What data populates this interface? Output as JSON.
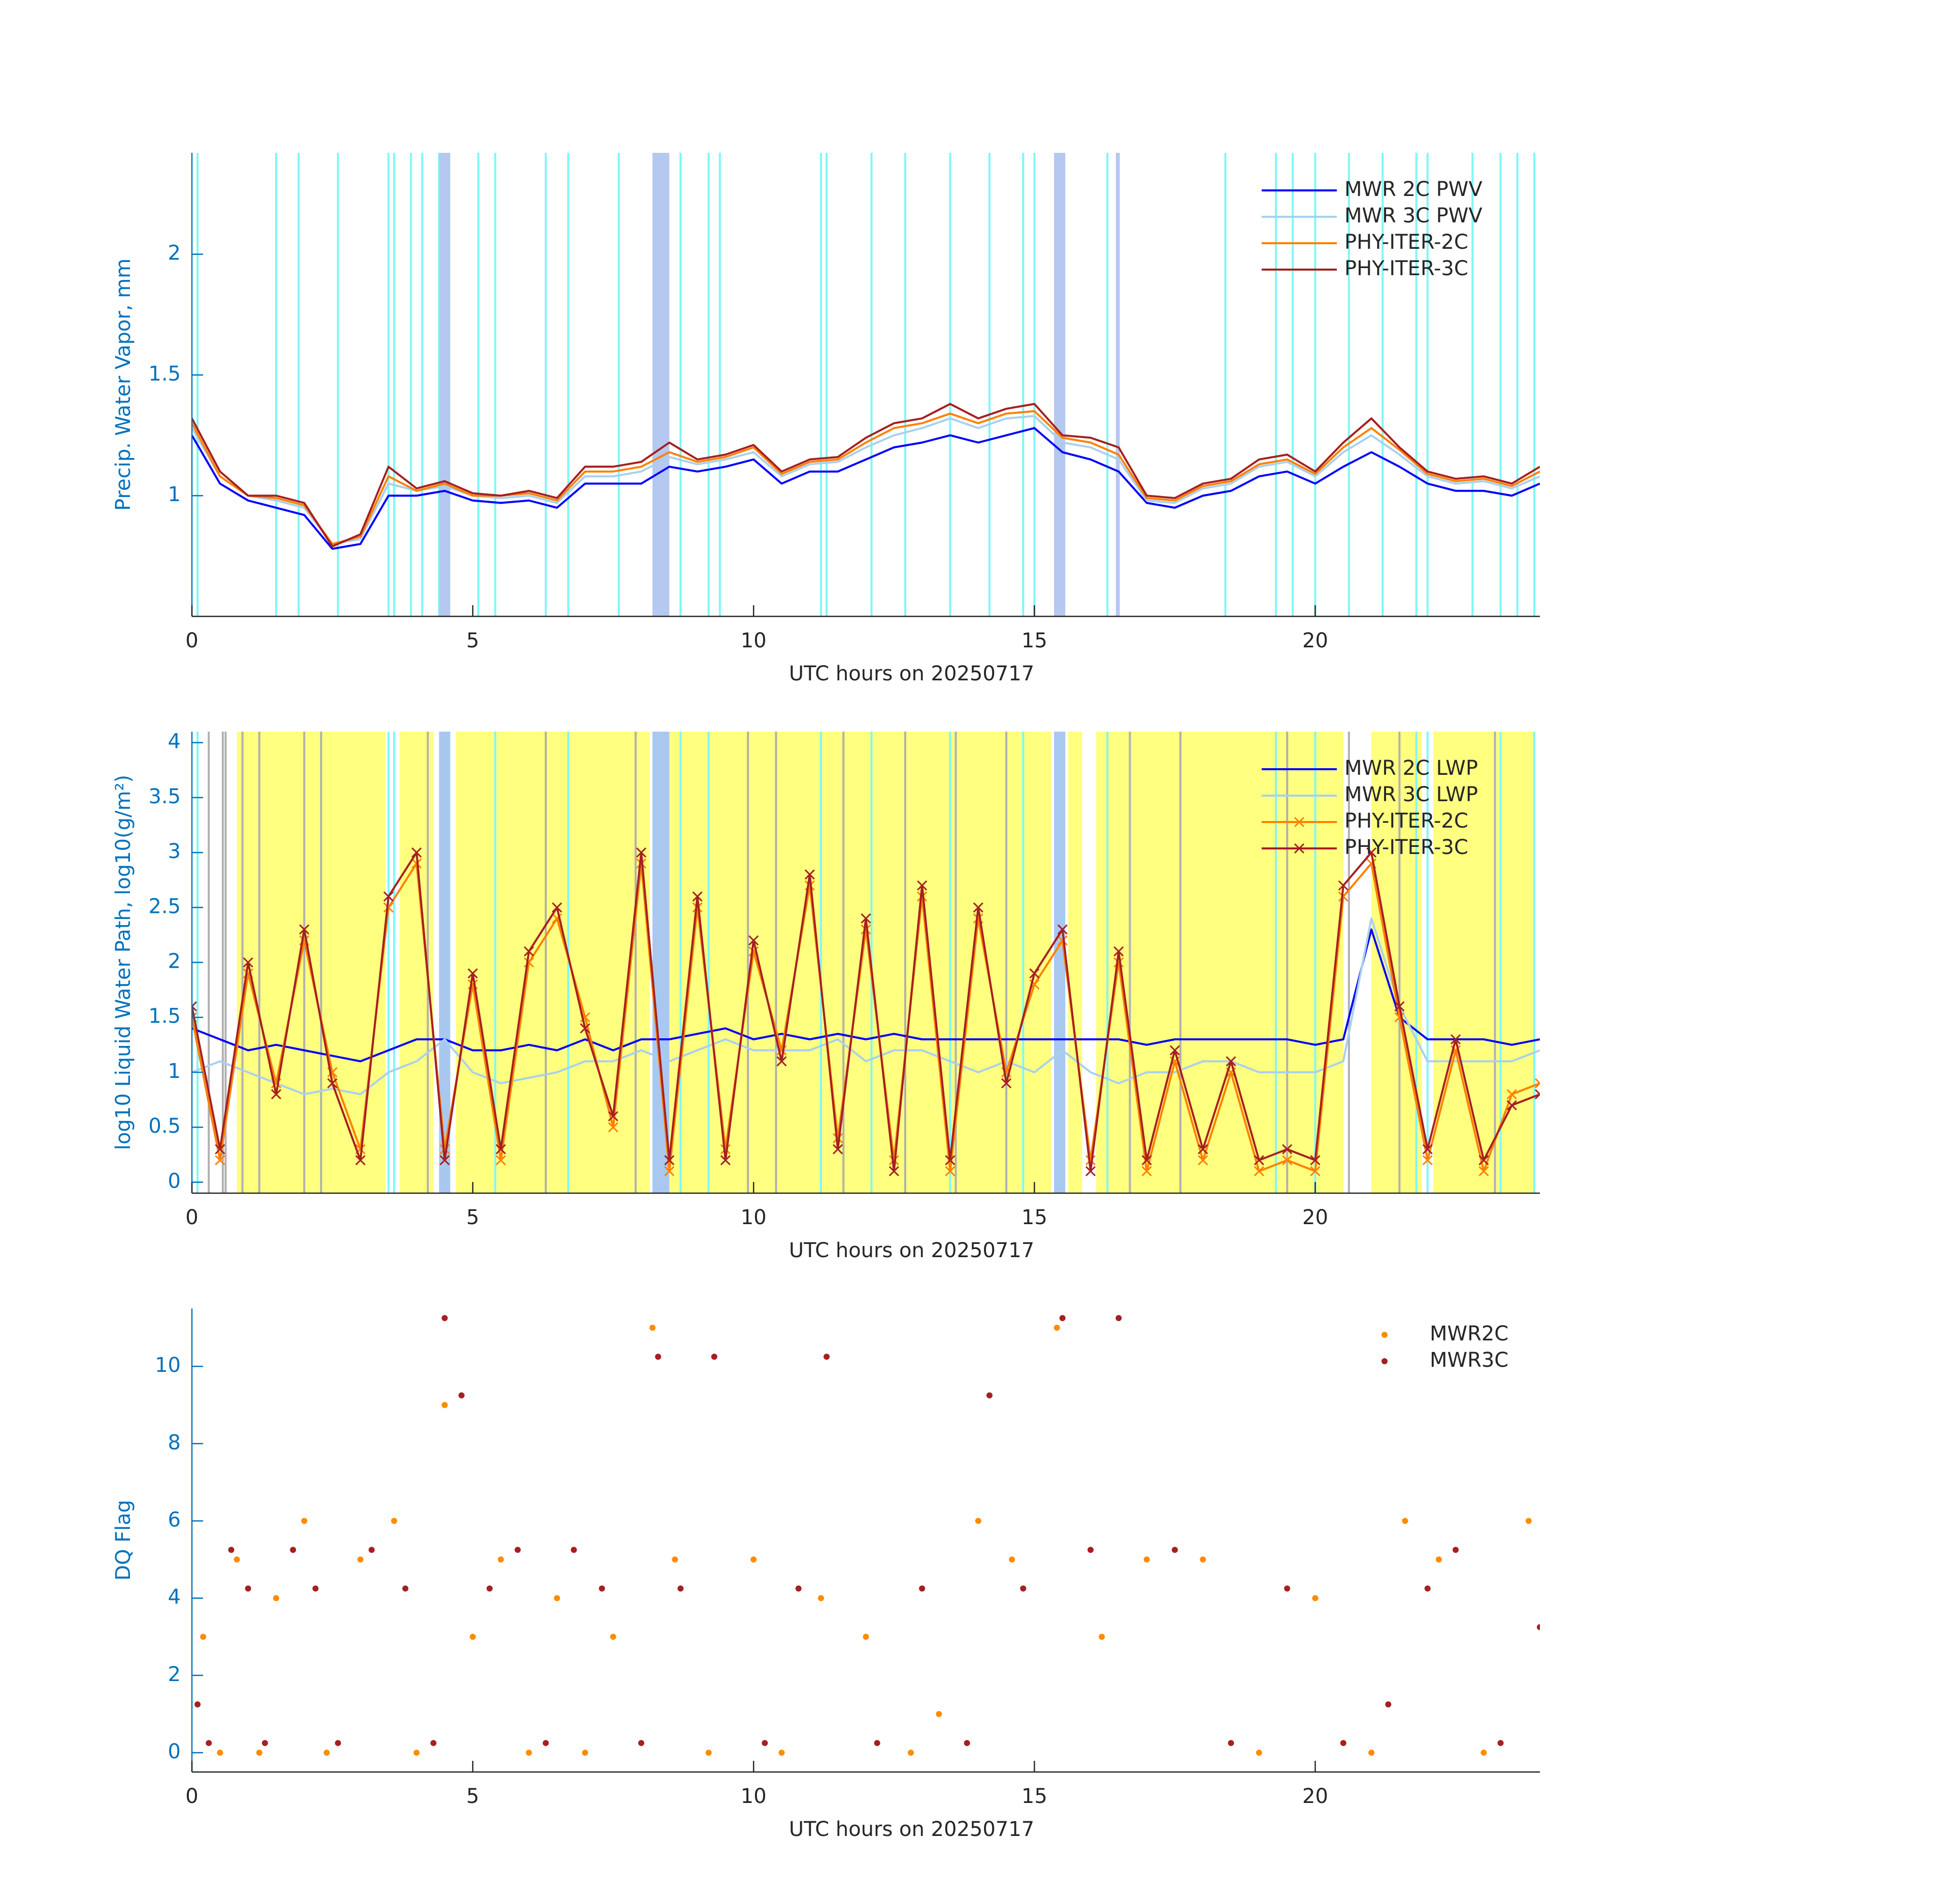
{
  "chart_data": [
    {
      "type": "line",
      "ylabel": "Precip. Water Vapor, mm",
      "xlabel": "UTC hours on 20250717",
      "xlim": [
        0,
        24
      ],
      "xticks": [
        0,
        5,
        10,
        15,
        20
      ],
      "ylim": [
        0.5,
        2.42
      ],
      "yticks": [
        1,
        1.5,
        2
      ],
      "legend": "upper right",
      "shading": [
        {
          "color": "#7ff7f7",
          "lines": [
            0.1,
            1.5,
            1.9,
            2.6,
            3.5,
            3.6,
            3.9,
            4.1,
            4.4,
            5.1,
            5.4,
            6.3,
            6.7,
            7.6,
            8.7,
            9.2,
            9.4,
            11.2,
            11.3,
            12.1,
            12.7,
            13.5,
            14.2,
            14.8,
            15.0,
            16.3,
            18.4,
            19.3,
            19.6,
            20.0,
            20.6,
            21.2,
            21.8,
            22.0,
            22.8,
            23.3,
            23.6,
            23.9
          ]
        },
        {
          "color": "#b4c8f0",
          "spans": [
            [
              4.4,
              4.6
            ],
            [
              8.2,
              8.5
            ],
            [
              15.35,
              15.55
            ],
            [
              16.45,
              16.52
            ]
          ]
        }
      ],
      "x": [
        0,
        0.5,
        1,
        1.5,
        2,
        2.5,
        3,
        3.5,
        4,
        4.5,
        5,
        5.5,
        6,
        6.5,
        7,
        7.5,
        8,
        8.5,
        9,
        9.5,
        10,
        10.5,
        11,
        11.5,
        12,
        12.5,
        13,
        13.5,
        14,
        14.5,
        15,
        15.5,
        16,
        16.5,
        17,
        17.5,
        18,
        18.5,
        19,
        19.5,
        20,
        20.5,
        21,
        21.5,
        22,
        22.5,
        23,
        23.5,
        24
      ],
      "series": [
        {
          "name": "MWR 2C PWV",
          "color": "#0000ff",
          "values": [
            1.25,
            1.05,
            0.98,
            0.95,
            0.92,
            0.78,
            0.8,
            1.0,
            1.0,
            1.02,
            0.98,
            0.97,
            0.98,
            0.95,
            1.05,
            1.05,
            1.05,
            1.12,
            1.1,
            1.12,
            1.15,
            1.05,
            1.1,
            1.1,
            1.15,
            1.2,
            1.22,
            1.25,
            1.22,
            1.25,
            1.28,
            1.18,
            1.15,
            1.1,
            0.97,
            0.95,
            1.0,
            1.02,
            1.08,
            1.1,
            1.05,
            1.12,
            1.18,
            1.12,
            1.05,
            1.02,
            1.02,
            1.0,
            1.05
          ]
        },
        {
          "name": "MWR 3C PWV",
          "color": "#a8d0ee",
          "values": [
            1.28,
            1.08,
            1.0,
            0.98,
            0.95,
            0.8,
            0.82,
            1.05,
            1.02,
            1.04,
            1.0,
            0.99,
            1.0,
            0.97,
            1.08,
            1.08,
            1.1,
            1.16,
            1.13,
            1.15,
            1.18,
            1.08,
            1.13,
            1.14,
            1.2,
            1.25,
            1.28,
            1.32,
            1.28,
            1.32,
            1.33,
            1.22,
            1.2,
            1.15,
            0.98,
            0.97,
            1.03,
            1.05,
            1.12,
            1.14,
            1.08,
            1.18,
            1.25,
            1.17,
            1.08,
            1.05,
            1.06,
            1.03,
            1.08
          ]
        },
        {
          "name": "PHY-ITER-2C",
          "color": "#ff8000",
          "values": [
            1.3,
            1.08,
            1.0,
            0.99,
            0.96,
            0.8,
            0.83,
            1.08,
            1.02,
            1.05,
            1.0,
            1.0,
            1.01,
            0.98,
            1.1,
            1.1,
            1.12,
            1.18,
            1.14,
            1.16,
            1.2,
            1.09,
            1.14,
            1.15,
            1.22,
            1.28,
            1.3,
            1.34,
            1.3,
            1.34,
            1.35,
            1.24,
            1.22,
            1.17,
            0.99,
            0.98,
            1.04,
            1.06,
            1.13,
            1.15,
            1.09,
            1.2,
            1.28,
            1.19,
            1.09,
            1.06,
            1.07,
            1.04,
            1.1
          ]
        },
        {
          "name": "PHY-ITER-3C",
          "color": "#a52020",
          "values": [
            1.32,
            1.1,
            1.0,
            1.0,
            0.97,
            0.79,
            0.84,
            1.12,
            1.03,
            1.06,
            1.01,
            1.0,
            1.02,
            0.99,
            1.12,
            1.12,
            1.14,
            1.22,
            1.15,
            1.17,
            1.21,
            1.1,
            1.15,
            1.16,
            1.24,
            1.3,
            1.32,
            1.38,
            1.32,
            1.36,
            1.38,
            1.25,
            1.24,
            1.2,
            1.0,
            0.99,
            1.05,
            1.07,
            1.15,
            1.17,
            1.1,
            1.22,
            1.32,
            1.2,
            1.1,
            1.07,
            1.08,
            1.05,
            1.12
          ]
        }
      ]
    },
    {
      "type": "line",
      "ylabel": "log10 Liquid Water Path, log10(g/m²)",
      "xlabel": "UTC hours on 20250717",
      "xlim": [
        0,
        24
      ],
      "xticks": [
        0,
        5,
        10,
        15,
        20
      ],
      "ylim": [
        -0.1,
        4.1
      ],
      "yticks": [
        0,
        0.5,
        1,
        1.5,
        2,
        2.5,
        3,
        3.5,
        4
      ],
      "legend": "upper right",
      "shading": [
        {
          "color": "#ffff80",
          "spans": [
            [
              0.8,
              3.45
            ],
            [
              3.7,
              4.3
            ],
            [
              4.7,
              8.15
            ],
            [
              8.5,
              15.3
            ],
            [
              15.6,
              15.85
            ],
            [
              16.1,
              20.5
            ],
            [
              21.0,
              21.9
            ],
            [
              22.1,
              23.9
            ]
          ]
        },
        {
          "color": "#b0b0b0",
          "lines": [
            0.3,
            0.55,
            0.6,
            0.9,
            1.2,
            2.0,
            2.3,
            4.2,
            6.3,
            7.9,
            9.9,
            10.4,
            11.6,
            12.7,
            13.6,
            14.5,
            16.7,
            17.6,
            19.5,
            20.6,
            21.5,
            23.2
          ]
        },
        {
          "color": "#7ff7f7",
          "lines": [
            0.1,
            3.5,
            3.6,
            5.4,
            6.7,
            8.7,
            9.2,
            11.2,
            12.1,
            13.5,
            14.8,
            16.3,
            19.3,
            20.0,
            21.8,
            22.0,
            23.3,
            23.9
          ]
        },
        {
          "color": "#a8c8f0",
          "spans": [
            [
              4.4,
              4.6
            ],
            [
              8.2,
              8.5
            ],
            [
              15.35,
              15.55
            ]
          ]
        }
      ],
      "x": [
        0,
        0.5,
        1,
        1.5,
        2,
        2.5,
        3,
        3.5,
        4,
        4.5,
        5,
        5.5,
        6,
        6.5,
        7,
        7.5,
        8,
        8.5,
        9,
        9.5,
        10,
        10.5,
        11,
        11.5,
        12,
        12.5,
        13,
        13.5,
        14,
        14.5,
        15,
        15.5,
        16,
        16.5,
        17,
        17.5,
        18,
        18.5,
        19,
        19.5,
        20,
        20.5,
        21,
        21.5,
        22,
        22.5,
        23,
        23.5,
        24
      ],
      "series": [
        {
          "name": "MWR 2C LWP",
          "color": "#0000ff",
          "values": [
            1.4,
            1.3,
            1.2,
            1.25,
            1.2,
            1.15,
            1.1,
            1.2,
            1.3,
            1.3,
            1.2,
            1.2,
            1.25,
            1.2,
            1.3,
            1.2,
            1.3,
            1.3,
            1.35,
            1.4,
            1.3,
            1.35,
            1.3,
            1.35,
            1.3,
            1.35,
            1.3,
            1.3,
            1.3,
            1.3,
            1.3,
            1.3,
            1.3,
            1.3,
            1.25,
            1.3,
            1.3,
            1.3,
            1.3,
            1.3,
            1.25,
            1.3,
            2.3,
            1.5,
            1.3,
            1.3,
            1.3,
            1.25,
            1.3
          ]
        },
        {
          "name": "MWR 3C LWP",
          "color": "#a8d0ee",
          "values": [
            1.0,
            1.1,
            1.0,
            0.9,
            0.8,
            0.85,
            0.8,
            1.0,
            1.1,
            1.3,
            1.0,
            0.9,
            0.95,
            1.0,
            1.1,
            1.1,
            1.2,
            1.1,
            1.2,
            1.3,
            1.2,
            1.2,
            1.2,
            1.3,
            1.1,
            1.2,
            1.2,
            1.1,
            1.0,
            1.1,
            1.0,
            1.2,
            1.0,
            0.9,
            1.0,
            1.0,
            1.1,
            1.1,
            1.0,
            1.0,
            1.0,
            1.1,
            2.4,
            1.6,
            1.1,
            1.1,
            1.1,
            1.1,
            1.2
          ]
        },
        {
          "name": "PHY-ITER-2C",
          "color": "#ff8000",
          "marker": "x",
          "values": [
            1.5,
            0.2,
            1.9,
            0.9,
            2.2,
            1.0,
            0.3,
            2.5,
            2.9,
            0.3,
            1.8,
            0.2,
            2.0,
            2.4,
            1.5,
            0.5,
            2.9,
            0.1,
            2.5,
            0.3,
            2.1,
            1.2,
            2.7,
            0.4,
            2.3,
            0.2,
            2.6,
            0.1,
            2.4,
            1.0,
            1.8,
            2.2,
            0.2,
            2.0,
            0.1,
            1.1,
            0.2,
            1.0,
            0.1,
            0.2,
            0.1,
            2.6,
            2.9,
            1.5,
            0.2,
            1.2,
            0.1,
            0.8,
            0.9
          ]
        },
        {
          "name": "PHY-ITER-3C",
          "color": "#a52020",
          "marker": "x",
          "values": [
            1.6,
            0.3,
            2.0,
            0.8,
            2.3,
            0.9,
            0.2,
            2.6,
            3.0,
            0.2,
            1.9,
            0.3,
            2.1,
            2.5,
            1.4,
            0.6,
            3.0,
            0.2,
            2.6,
            0.2,
            2.2,
            1.1,
            2.8,
            0.3,
            2.4,
            0.1,
            2.7,
            0.2,
            2.5,
            0.9,
            1.9,
            2.3,
            0.1,
            2.1,
            0.2,
            1.2,
            0.3,
            1.1,
            0.2,
            0.3,
            0.2,
            2.7,
            3.0,
            1.6,
            0.3,
            1.3,
            0.2,
            0.7,
            0.8
          ]
        }
      ]
    },
    {
      "type": "scatter",
      "ylabel": "DQ Flag",
      "xlabel": "UTC hours on 20250717",
      "xlim": [
        0,
        24
      ],
      "xticks": [
        0,
        5,
        10,
        15,
        20
      ],
      "ylim": [
        -0.5,
        11.5
      ],
      "yticks": [
        0,
        2,
        4,
        6,
        8,
        10
      ],
      "legend": "upper right",
      "series": [
        {
          "name": "MWR2C",
          "color": "#ff8c00",
          "x": [
            0.2,
            0.5,
            0.8,
            1.2,
            1.5,
            2.0,
            2.4,
            3.0,
            3.6,
            4.0,
            4.5,
            5.0,
            5.5,
            6.0,
            6.5,
            7.0,
            7.5,
            8.2,
            8.6,
            9.2,
            10.0,
            10.5,
            11.2,
            12.0,
            12.8,
            13.3,
            14.0,
            14.6,
            15.4,
            16.2,
            17.0,
            18.0,
            19.0,
            20.0,
            21.0,
            21.6,
            22.2,
            23.0,
            23.8
          ],
          "values": [
            3,
            0,
            5,
            0,
            4,
            6,
            0,
            5,
            6,
            0,
            9,
            3,
            5,
            0,
            4,
            0,
            3,
            11,
            5,
            0,
            5,
            0,
            4,
            3,
            0,
            1,
            6,
            5,
            11,
            3,
            5,
            5,
            0,
            4,
            0,
            6,
            5,
            0,
            6
          ]
        },
        {
          "name": "MWR3C",
          "color": "#a52020",
          "x": [
            0.1,
            0.3,
            0.7,
            1.0,
            1.3,
            1.8,
            2.2,
            2.6,
            3.2,
            3.8,
            4.3,
            4.5,
            4.8,
            5.3,
            5.8,
            6.3,
            6.8,
            7.3,
            8.0,
            8.3,
            8.7,
            9.3,
            10.2,
            10.8,
            11.3,
            12.2,
            13.0,
            13.8,
            14.2,
            14.8,
            15.5,
            16.0,
            16.5,
            17.5,
            18.5,
            19.5,
            20.5,
            21.3,
            22.0,
            22.5,
            23.3,
            24.0
          ],
          "values": [
            1.25,
            0.25,
            5.25,
            4.25,
            0.25,
            5.25,
            4.25,
            0.25,
            5.25,
            4.25,
            0.25,
            11.25,
            9.25,
            4.25,
            5.25,
            0.25,
            5.25,
            4.25,
            0.25,
            10.25,
            4.25,
            10.25,
            0.25,
            4.25,
            10.25,
            0.25,
            4.25,
            0.25,
            9.25,
            4.25,
            11.25,
            5.25,
            11.25,
            5.25,
            0.25,
            4.25,
            0.25,
            1.25,
            4.25,
            5.25,
            0.25,
            3.25
          ]
        }
      ]
    }
  ]
}
